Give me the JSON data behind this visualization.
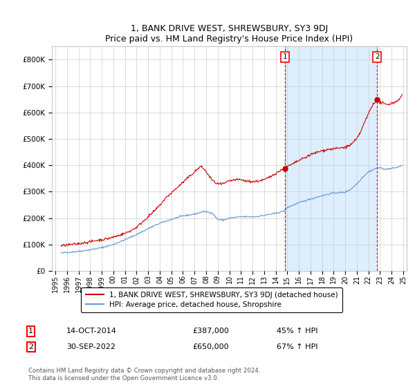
{
  "title": "1, BANK DRIVE WEST, SHREWSBURY, SY3 9DJ",
  "subtitle": "Price paid vs. HM Land Registry's House Price Index (HPI)",
  "ylim": [
    0,
    850000
  ],
  "yticks": [
    0,
    100000,
    200000,
    300000,
    400000,
    500000,
    600000,
    700000,
    800000
  ],
  "ytick_labels": [
    "£0",
    "£100K",
    "£200K",
    "£300K",
    "£400K",
    "£500K",
    "£600K",
    "£700K",
    "£800K"
  ],
  "sale1_date": 2014.79,
  "sale1_price": 387000,
  "sale1_label": "1",
  "sale2_date": 2022.75,
  "sale2_price": 650000,
  "sale2_label": "2",
  "legend_line1": "1, BANK DRIVE WEST, SHREWSBURY, SY3 9DJ (detached house)",
  "legend_line2": "HPI: Average price, detached house, Shropshire",
  "footer": "Contains HM Land Registry data © Crown copyright and database right 2024.\nThis data is licensed under the Open Government Licence v3.0.",
  "line1_color": "#cc0000",
  "line2_color": "#6699cc",
  "shade_color": "#ddeeff",
  "background_color": "#ffffff",
  "grid_color": "#cccccc",
  "sale_marker_color": "#cc0000",
  "dashed_line_color": "#cc0000",
  "hpi_anchors_x": [
    1995.5,
    1996.0,
    1997.0,
    1998.0,
    1999.0,
    2000.0,
    2001.0,
    2002.0,
    2003.0,
    2004.0,
    2005.0,
    2006.0,
    2007.0,
    2007.8,
    2008.5,
    2009.0,
    2009.5,
    2010.0,
    2011.0,
    2012.0,
    2012.5,
    2013.0,
    2014.0,
    2014.79,
    2015.0,
    2016.0,
    2017.0,
    2018.0,
    2019.0,
    2020.0,
    2020.5,
    2021.0,
    2021.5,
    2022.0,
    2022.75,
    2023.0,
    2023.5,
    2024.0,
    2024.5,
    2024.9
  ],
  "hpi_anchors_y": [
    68000,
    70000,
    74000,
    80000,
    88000,
    100000,
    118000,
    138000,
    160000,
    180000,
    195000,
    208000,
    215000,
    225000,
    220000,
    195000,
    192000,
    200000,
    205000,
    205000,
    207000,
    210000,
    218000,
    228000,
    240000,
    258000,
    272000,
    285000,
    295000,
    298000,
    310000,
    330000,
    355000,
    375000,
    390000,
    390000,
    385000,
    388000,
    392000,
    400000
  ],
  "prop_anchors_x": [
    1995.5,
    1996.0,
    1996.5,
    1997.0,
    1997.5,
    1998.0,
    1998.5,
    1999.0,
    1999.5,
    2000.0,
    2000.5,
    2001.0,
    2001.5,
    2002.0,
    2002.5,
    2003.0,
    2003.5,
    2004.0,
    2004.5,
    2005.0,
    2005.5,
    2006.0,
    2006.5,
    2007.0,
    2007.25,
    2007.5,
    2007.75,
    2008.0,
    2008.25,
    2008.5,
    2008.75,
    2009.0,
    2009.25,
    2009.5,
    2009.75,
    2010.0,
    2010.5,
    2011.0,
    2011.5,
    2012.0,
    2012.5,
    2013.0,
    2013.5,
    2014.0,
    2014.5,
    2014.79,
    2015.0,
    2015.5,
    2016.0,
    2016.5,
    2017.0,
    2017.5,
    2018.0,
    2018.5,
    2019.0,
    2019.5,
    2020.0,
    2020.5,
    2021.0,
    2021.25,
    2021.5,
    2021.75,
    2022.0,
    2022.25,
    2022.5,
    2022.75,
    2022.9,
    2023.0,
    2023.25,
    2023.5,
    2023.75,
    2024.0,
    2024.25,
    2024.5,
    2024.75,
    2024.9
  ],
  "prop_anchors_y": [
    95000,
    98000,
    100000,
    103000,
    107000,
    110000,
    115000,
    118000,
    122000,
    128000,
    135000,
    142000,
    152000,
    165000,
    185000,
    205000,
    225000,
    248000,
    275000,
    295000,
    315000,
    335000,
    355000,
    375000,
    385000,
    395000,
    390000,
    375000,
    360000,
    345000,
    335000,
    330000,
    328000,
    330000,
    335000,
    340000,
    345000,
    345000,
    340000,
    338000,
    340000,
    345000,
    355000,
    370000,
    382000,
    387000,
    395000,
    405000,
    418000,
    428000,
    440000,
    448000,
    455000,
    460000,
    462000,
    465000,
    468000,
    478000,
    500000,
    520000,
    545000,
    570000,
    595000,
    620000,
    638000,
    650000,
    645000,
    638000,
    635000,
    630000,
    632000,
    635000,
    638000,
    645000,
    655000,
    665000
  ]
}
